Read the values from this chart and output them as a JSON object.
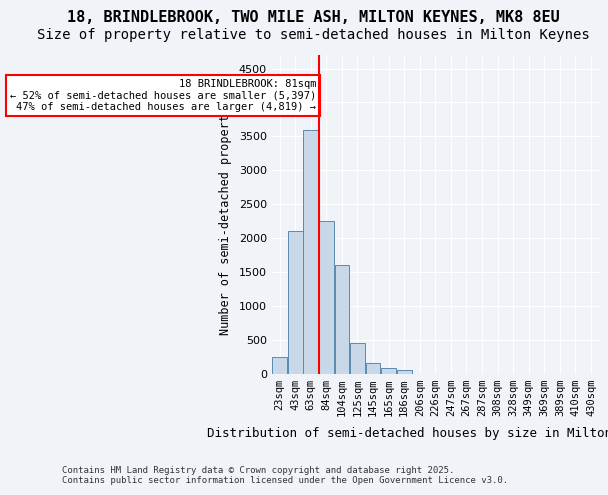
{
  "title_line1": "18, BRINDLEBROOK, TWO MILE ASH, MILTON KEYNES, MK8 8EU",
  "title_line2": "Size of property relative to semi-detached houses in Milton Keynes",
  "xlabel": "Distribution of semi-detached houses by size in Milton Keynes",
  "ylabel": "Number of semi-detached properties",
  "footnote": "Contains HM Land Registry data © Crown copyright and database right 2025.\nContains public sector information licensed under the Open Government Licence v3.0.",
  "categories": [
    "23sqm",
    "43sqm",
    "63sqm",
    "84sqm",
    "104sqm",
    "125sqm",
    "145sqm",
    "165sqm",
    "186sqm",
    "206sqm",
    "226sqm",
    "247sqm",
    "267sqm",
    "287sqm",
    "308sqm",
    "328sqm",
    "349sqm",
    "369sqm",
    "389sqm",
    "410sqm",
    "430sqm"
  ],
  "values": [
    250,
    2100,
    3600,
    2250,
    1600,
    450,
    150,
    75,
    50,
    0,
    0,
    0,
    0,
    0,
    0,
    0,
    0,
    0,
    0,
    0,
    0
  ],
  "bar_color": "#c8d8e8",
  "bar_edge_color": "#5a8ab0",
  "red_line_x": 3,
  "red_line_label": "18 BRINDLEBROOK: 81sqm",
  "annotation_line1": "18 BRINDLEBROOK: 81sqm",
  "annotation_line2": "← 52% of semi-detached houses are smaller (5,397)",
  "annotation_line3": "47% of semi-detached houses are larger (4,819) →",
  "ylim": [
    0,
    4700
  ],
  "yticks": [
    0,
    500,
    1000,
    1500,
    2000,
    2500,
    3000,
    3500,
    4000,
    4500
  ],
  "background_color": "#f0f4f8",
  "plot_background": "#f0f4f8",
  "grid_color": "#ffffff",
  "title_fontsize": 11,
  "subtitle_fontsize": 10
}
